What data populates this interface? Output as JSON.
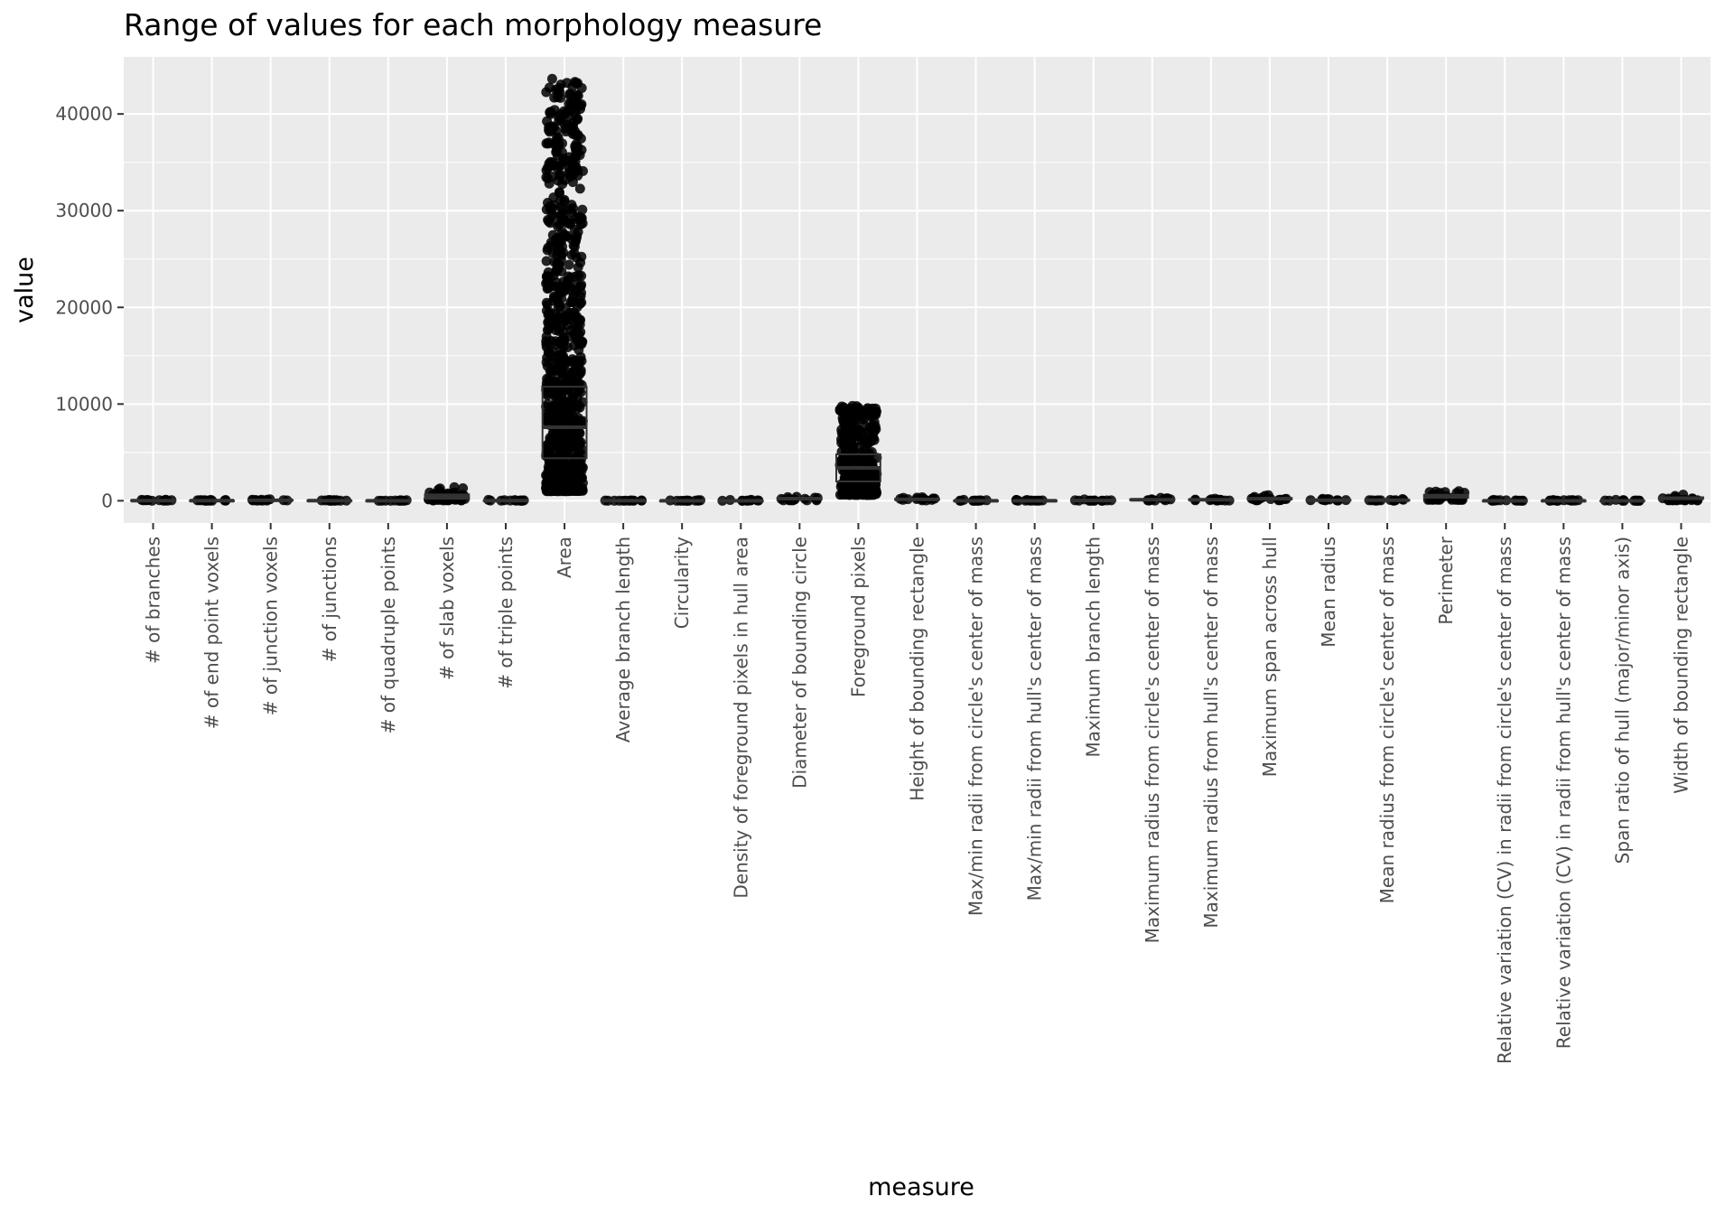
{
  "chart_data": {
    "type": "box",
    "title": "Range of values for each morphology measure",
    "xlabel": "measure",
    "ylabel": "value",
    "ylim": [
      -2300,
      45900
    ],
    "yticks": [
      0,
      10000,
      20000,
      30000,
      40000
    ],
    "grid": true,
    "legend": "none",
    "point_color": "#000000",
    "box_color": "#333333",
    "panel_color": "#ebebeb",
    "categories": [
      "# of branches",
      "# of end point voxels",
      "# of junction voxels",
      "# of junctions",
      "# of quadruple points",
      "# of slab voxels",
      "# of triple points",
      "Area",
      "Average branch length",
      "Circularity",
      "Density of foreground pixels in hull area",
      "Diameter of bounding circle",
      "Foreground pixels",
      "Height of bounding rectangle",
      "Max/min radii from circle's center of mass",
      "Max/min radii from hull's center of mass",
      "Maximum branch length",
      "Maximum radius from circle's center of mass",
      "Maximum radius from hull's center of mass",
      "Maximum span across hull",
      "Mean radius",
      "Mean radius from circle's center of mass",
      "Perimeter",
      "Relative variation (CV) in radii from circle's center of mass",
      "Relative variation (CV) in radii from hull's center of mass",
      "Span ratio of hull (major/minor axis)",
      "Width of bounding rectangle"
    ],
    "boxes": [
      {
        "q1": 10,
        "median": 20,
        "q3": 40,
        "pmin": 0,
        "pmax": 150
      },
      {
        "q1": 5,
        "median": 10,
        "q3": 20,
        "pmin": 0,
        "pmax": 60
      },
      {
        "q1": 20,
        "median": 40,
        "q3": 80,
        "pmin": 0,
        "pmax": 250
      },
      {
        "q1": 5,
        "median": 10,
        "q3": 20,
        "pmin": 0,
        "pmax": 60
      },
      {
        "q1": 0,
        "median": 1,
        "q3": 3,
        "pmin": 0,
        "pmax": 20
      },
      {
        "q1": 200,
        "median": 400,
        "q3": 650,
        "pmin": 30,
        "pmax": 1500
      },
      {
        "q1": 3,
        "median": 8,
        "q3": 15,
        "pmin": 0,
        "pmax": 50
      },
      {
        "q1": 4400,
        "median": 7600,
        "q3": 11800,
        "pmin": 1000,
        "pmax": 43700
      },
      {
        "q1": 5,
        "median": 8,
        "q3": 12,
        "pmin": 1,
        "pmax": 40
      },
      {
        "q1": 0.1,
        "median": 0.2,
        "q3": 0.4,
        "pmin": 0,
        "pmax": 1
      },
      {
        "q1": 0.2,
        "median": 0.3,
        "q3": 0.5,
        "pmin": 0,
        "pmax": 1
      },
      {
        "q1": 150,
        "median": 220,
        "q3": 300,
        "pmin": 40,
        "pmax": 550
      },
      {
        "q1": 2000,
        "median": 3400,
        "q3": 4800,
        "pmin": 600,
        "pmax": 9900
      },
      {
        "q1": 90,
        "median": 140,
        "q3": 200,
        "pmin": 30,
        "pmax": 500
      },
      {
        "q1": 1.5,
        "median": 2,
        "q3": 3,
        "pmin": 1,
        "pmax": 15
      },
      {
        "q1": 1.5,
        "median": 2,
        "q3": 3,
        "pmin": 1,
        "pmax": 15
      },
      {
        "q1": 15,
        "median": 25,
        "q3": 40,
        "pmin": 2,
        "pmax": 150
      },
      {
        "q1": 70,
        "median": 110,
        "q3": 150,
        "pmin": 20,
        "pmax": 350
      },
      {
        "q1": 70,
        "median": 110,
        "q3": 150,
        "pmin": 20,
        "pmax": 350
      },
      {
        "q1": 140,
        "median": 210,
        "q3": 290,
        "pmin": 40,
        "pmax": 600
      },
      {
        "q1": 40,
        "median": 60,
        "q3": 80,
        "pmin": 10,
        "pmax": 200
      },
      {
        "q1": 40,
        "median": 60,
        "q3": 80,
        "pmin": 10,
        "pmax": 200
      },
      {
        "q1": 300,
        "median": 450,
        "q3": 620,
        "pmin": 100,
        "pmax": 1100
      },
      {
        "q1": 0.2,
        "median": 0.3,
        "q3": 0.4,
        "pmin": 0,
        "pmax": 1
      },
      {
        "q1": 0.2,
        "median": 0.3,
        "q3": 0.4,
        "pmin": 0,
        "pmax": 1
      },
      {
        "q1": 1.2,
        "median": 1.5,
        "q3": 2,
        "pmin": 1,
        "pmax": 10
      },
      {
        "q1": 180,
        "median": 260,
        "q3": 360,
        "pmin": 40,
        "pmax": 700
      }
    ]
  }
}
